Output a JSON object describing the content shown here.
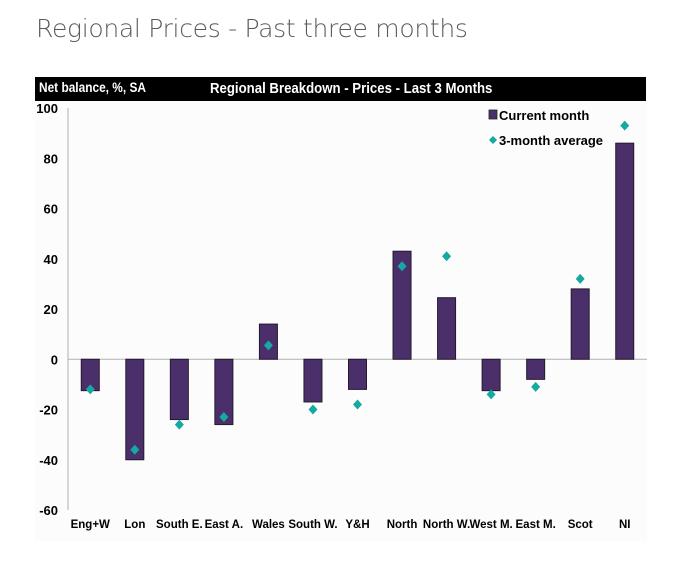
{
  "page": {
    "title": "Regional Prices - Past three months"
  },
  "chart_data": {
    "type": "bar",
    "title": "Regional Breakdown - Prices - Last 3 Months",
    "ylabel": "Net balance, %, SA",
    "xlabel": "",
    "ylim": [
      -60,
      100
    ],
    "yticks": [
      100,
      80,
      60,
      40,
      20,
      0,
      -20,
      -40,
      -60
    ],
    "grid": false,
    "legend_position": "top-right",
    "categories": [
      "Eng+W",
      "Lon",
      "South E.",
      "East A.",
      "Wales",
      "South W.",
      "Y&H",
      "North",
      "North W.",
      "West M.",
      "East M.",
      "Scot",
      "NI"
    ],
    "series": [
      {
        "name": "Current month",
        "kind": "bar",
        "color": "#4b2f6a",
        "values": [
          -12.5,
          -40,
          -24,
          -26,
          14,
          -17,
          -12,
          43,
          24.5,
          -12.5,
          -8,
          28,
          86
        ]
      },
      {
        "name": "3-month average",
        "kind": "diamond",
        "color": "#15a9a2",
        "values": [
          -12,
          -36,
          -26,
          -23,
          5.5,
          -20,
          -18,
          37,
          41,
          -14,
          -11,
          32,
          93
        ]
      }
    ]
  }
}
